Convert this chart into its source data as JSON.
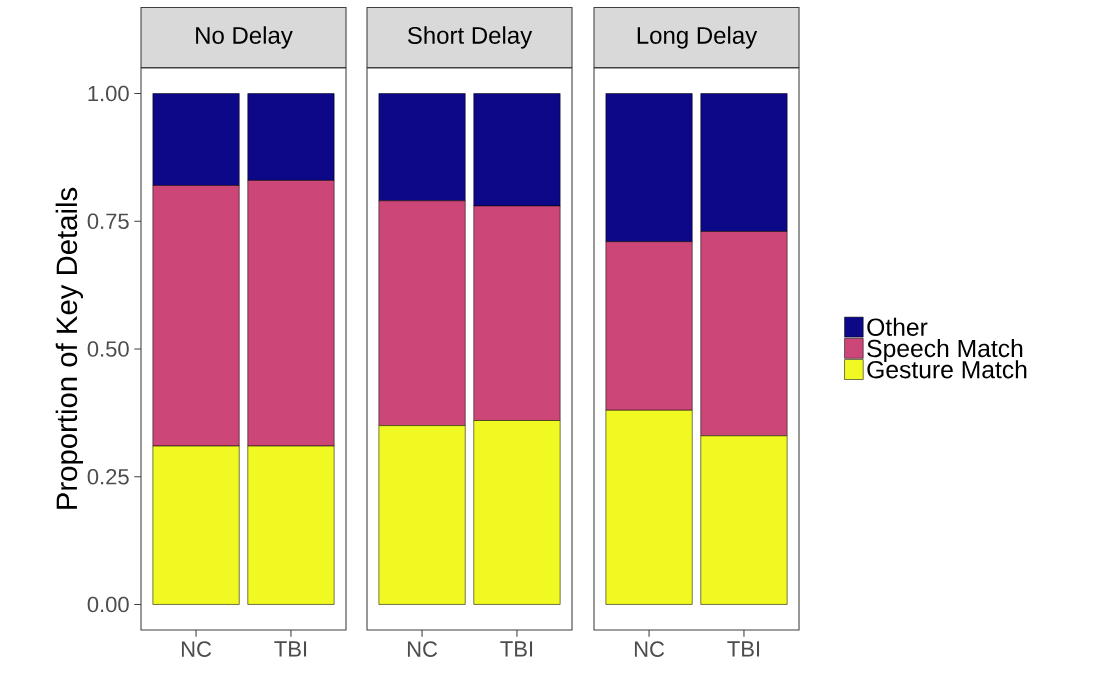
{
  "chart_data": [
    {
      "type": "bar",
      "title": "No Delay",
      "ylabel": "Proportion of Key Details",
      "categories": [
        "NC",
        "TBI"
      ],
      "stacked": true,
      "ylim": [
        -0.05,
        1.05
      ],
      "yticks": [
        {
          "value": 0,
          "label": "0.00"
        },
        {
          "value": 0.25,
          "label": "0.25"
        },
        {
          "value": 0.5,
          "label": "0.50"
        },
        {
          "value": 0.75,
          "label": "0.75"
        },
        {
          "value": 1,
          "label": "1.00"
        }
      ],
      "series": [
        {
          "color": "#f0f921",
          "values": [
            0.31,
            0.31
          ]
        },
        {
          "color": "#cc4778",
          "values": [
            0.51,
            0.52
          ]
        },
        {
          "color": "#0d0887",
          "values": [
            0.18,
            0.17
          ]
        }
      ]
    },
    {
      "type": "bar",
      "title": "Short Delay",
      "categories": [
        "NC",
        "TBI"
      ],
      "stacked": true,
      "ylim": [
        -0.05,
        1.05
      ],
      "tick_labels": "x",
      "series": [
        {
          "color": "#f0f921",
          "values": [
            0.35,
            0.36
          ]
        },
        {
          "color": "#cc4778",
          "values": [
            0.44,
            0.42
          ]
        },
        {
          "color": "#0d0887",
          "values": [
            0.21,
            0.22
          ]
        }
      ]
    },
    {
      "type": "bar",
      "title": "Long Delay",
      "categories": [
        "NC",
        "TBI"
      ],
      "stacked": true,
      "ylim": [
        -0.05,
        1.05
      ],
      "tick_labels": "x",
      "legend": "right",
      "series": [
        {
          "name": "Gesture Match",
          "color": "#f0f921",
          "values": [
            0.38,
            0.33
          ]
        },
        {
          "name": "Speech Match",
          "color": "#cc4778",
          "values": [
            0.33,
            0.4
          ]
        },
        {
          "name": "Other",
          "color": "#0d0887",
          "values": [
            0.29,
            0.27
          ]
        }
      ]
    }
  ]
}
